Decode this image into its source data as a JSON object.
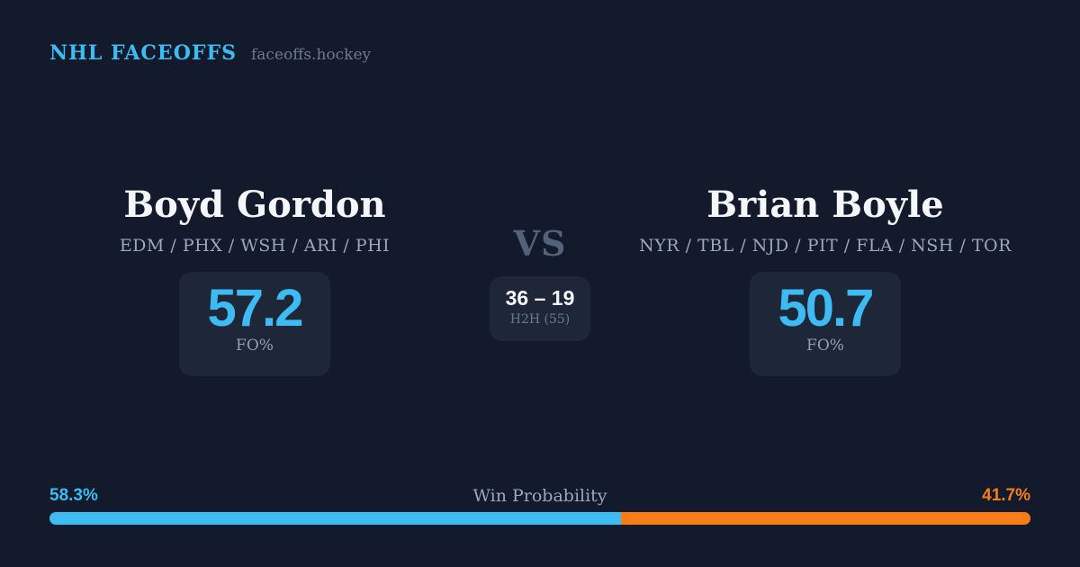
{
  "header": {
    "brand": "NHL FACEOFFS",
    "site": "faceoffs.hockey"
  },
  "players": {
    "left": {
      "name": "Boyd Gordon",
      "teams": "EDM / PHX / WSH / ARI / PHI",
      "fo_value": "57.2",
      "fo_label": "FO%"
    },
    "right": {
      "name": "Brian Boyle",
      "teams": "NYR / TBL / NJD / PIT / FLA / NSH / TOR",
      "fo_value": "50.7",
      "fo_label": "FO%"
    }
  },
  "versus": {
    "label": "VS",
    "h2h_record": "36 – 19",
    "h2h_label": "H2H (55)"
  },
  "win_probability": {
    "title": "Win Probability",
    "left_label": "58.3%",
    "right_label": "41.7%",
    "left_pct": 58.3,
    "right_pct": 41.7
  },
  "colors": {
    "background": "#121a2b",
    "card": "#1d2738",
    "accent_blue": "#3dbbf2",
    "accent_orange": "#f87d16",
    "text_bright": "#f4f6f9",
    "text_soft": "#9aa8bd",
    "label_soft": "#94a0b2",
    "vs_color": "#53627b",
    "muted": "#6e7a8c"
  }
}
